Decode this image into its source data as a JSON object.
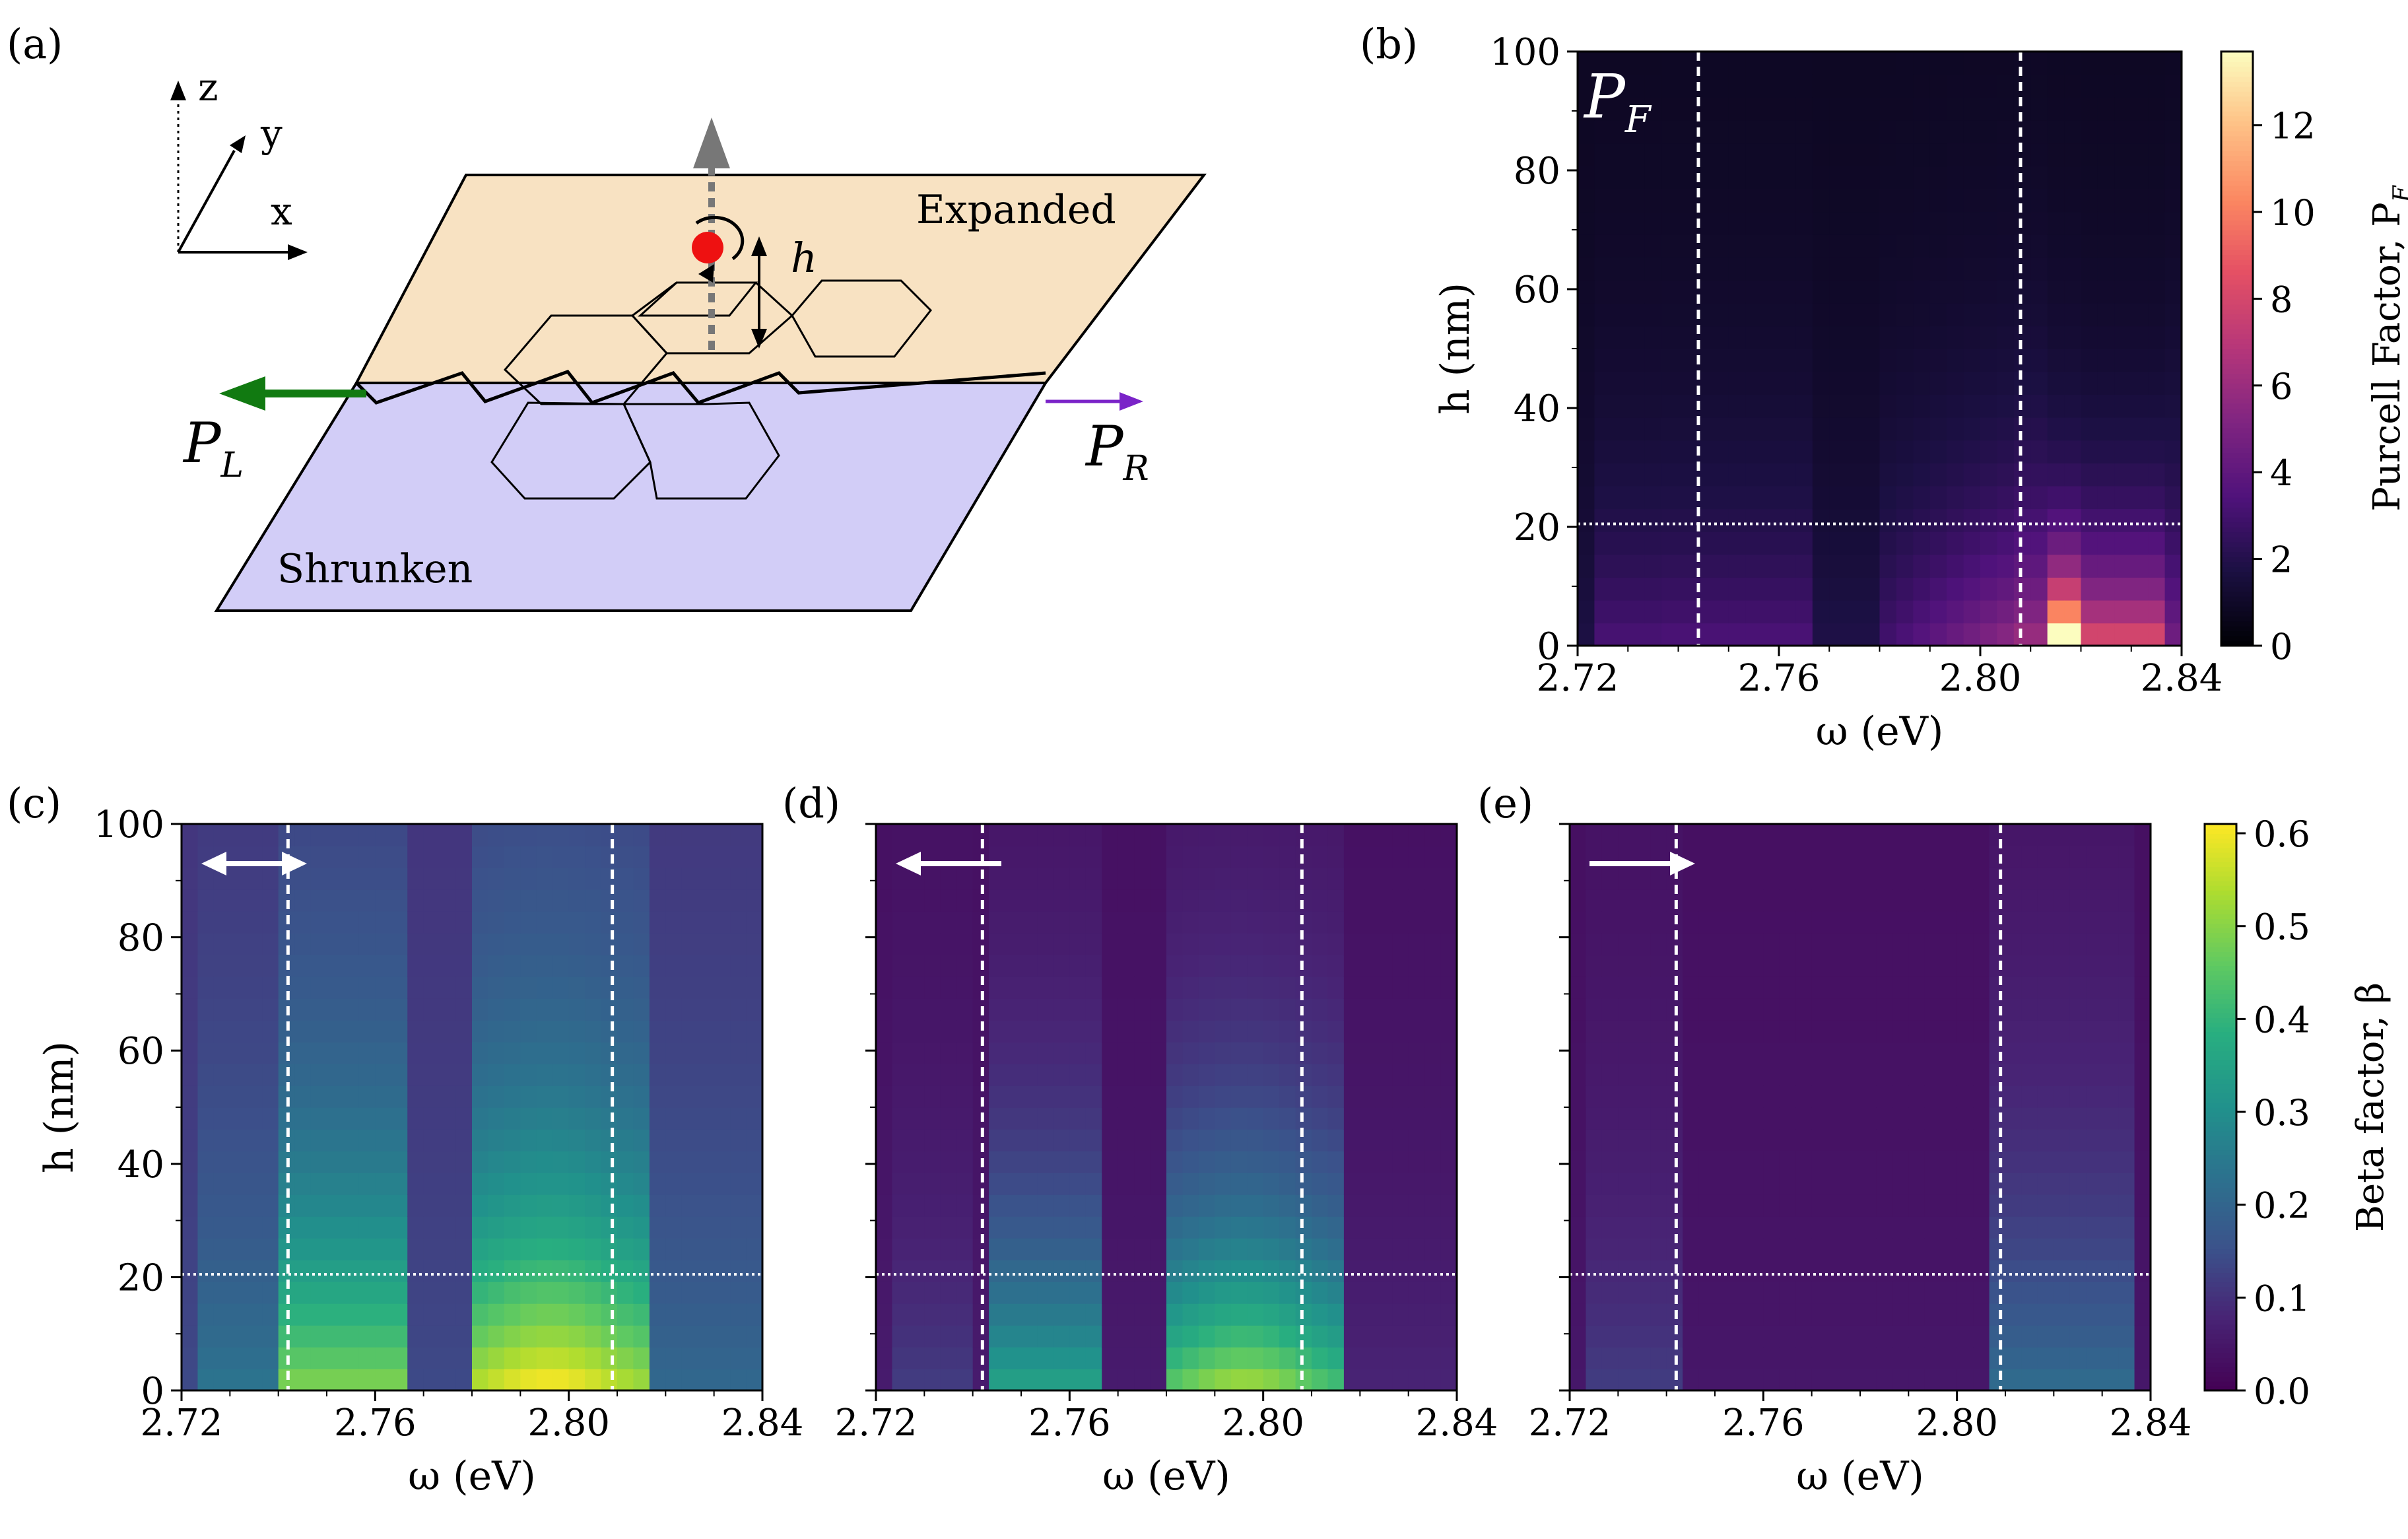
{
  "figure": {
    "panel_labels": {
      "a": "(a)",
      "b": "(b)",
      "c": "(c)",
      "d": "(d)",
      "e": "(e)"
    }
  },
  "schematic": {
    "axes": {
      "x": "x",
      "y": "y",
      "z": "z"
    },
    "expanded_label": "Expanded",
    "shrunken_label": "Shrunken",
    "h_label": "h",
    "pl_label": "P",
    "pl_sub": "L",
    "pr_label": "P",
    "pr_sub": "R",
    "colors": {
      "expanded": "#f8e2c2",
      "shrunken": "#d2cdf7",
      "left_arrow": "#117a11",
      "right_arrow": "#7a23c8",
      "dot": "#ee1111"
    }
  },
  "chart_data": [
    {
      "type": "heatmap",
      "panel": "b",
      "annotation": "P",
      "annotation_sub": "F",
      "xlabel": "ω (eV)",
      "ylabel": "h (nm)",
      "xlim": [
        2.72,
        2.84
      ],
      "ylim": [
        0,
        100
      ],
      "x_ticks": [
        "2.72",
        "2.76",
        "2.80",
        "2.84"
      ],
      "y_ticks": [
        "0",
        "20",
        "40",
        "60",
        "80",
        "100"
      ],
      "vlines": [
        2.744,
        2.808
      ],
      "hline": 20.5,
      "colormap": "magma",
      "colorbar": {
        "label": "Purcell Factor, P",
        "label_sub": "F",
        "range": [
          0,
          13.7
        ],
        "ticks": [
          "0",
          "2",
          "4",
          "6",
          "8",
          "10",
          "12"
        ]
      },
      "peak_description": "maximum ≈ 13.5 near ω = 2.813 eV, h = 0–10 nm"
    },
    {
      "type": "heatmap",
      "panel": "c",
      "direction": "both",
      "xlabel": "ω (eV)",
      "ylabel": "h (nm)",
      "xlim": [
        2.72,
        2.84
      ],
      "ylim": [
        0,
        100
      ],
      "x_ticks": [
        "2.72",
        "2.76",
        "2.80",
        "2.84"
      ],
      "y_ticks": [
        "0",
        "20",
        "40",
        "60",
        "80",
        "100"
      ],
      "vlines": [
        2.742,
        2.809
      ],
      "hline": 20.5,
      "colormap": "viridis",
      "peak_description": "maximum β ≈ 0.6 near ω = 2.79–2.80 eV, h < 10 nm"
    },
    {
      "type": "heatmap",
      "panel": "d",
      "direction": "left",
      "xlabel": "ω (eV)",
      "ylabel": "",
      "xlim": [
        2.72,
        2.84
      ],
      "ylim": [
        0,
        100
      ],
      "x_ticks": [
        "2.72",
        "2.76",
        "2.80",
        "2.84"
      ],
      "vlines": [
        2.742,
        2.808
      ],
      "hline": 20.5,
      "colormap": "viridis",
      "peak_description": "maximum β ≈ 0.52 near ω = 2.785–2.80 eV, h < 10 nm"
    },
    {
      "type": "heatmap",
      "panel": "e",
      "direction": "right",
      "xlabel": "ω (eV)",
      "ylabel": "",
      "xlim": [
        2.72,
        2.84
      ],
      "ylim": [
        0,
        100
      ],
      "x_ticks": [
        "2.72",
        "2.76",
        "2.80",
        "2.84"
      ],
      "vlines": [
        2.742,
        2.809
      ],
      "hline": 20.5,
      "colormap": "viridis",
      "colorbar": {
        "label": "Beta factor, β",
        "range": [
          0,
          0.61
        ],
        "ticks": [
          "0.0",
          "0.1",
          "0.2",
          "0.3",
          "0.4",
          "0.5",
          "0.6"
        ]
      },
      "peak_description": "maximum β ≈ 0.2 near ω = 2.81–2.83 eV, h < 20 nm"
    }
  ]
}
